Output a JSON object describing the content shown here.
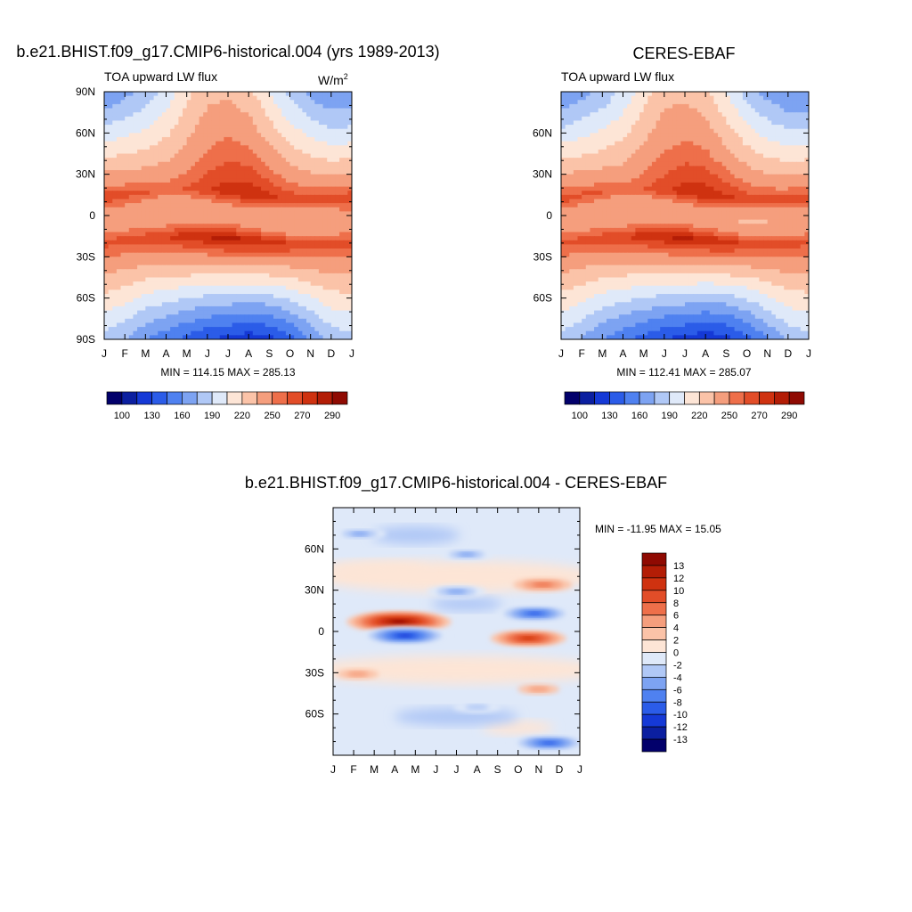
{
  "chart_data": [
    {
      "type": "heatmap",
      "title": "b.e21.BHIST.f09_g17.CMIP6-historical.004 (yrs 1989-2013)",
      "subtitle": "TOA upward LW flux",
      "units_base": "W/m",
      "units_exp": "2",
      "x_ticks": [
        "J",
        "F",
        "M",
        "A",
        "M",
        "J",
        "J",
        "A",
        "S",
        "O",
        "N",
        "D",
        "J"
      ],
      "y_ticks": [
        "90N",
        "60N",
        "30N",
        "0",
        "30S",
        "60S",
        "90S"
      ],
      "ylim": [
        -90,
        90
      ],
      "minmax": "MIN = 114.15 MAX = 285.13",
      "colorbar_labels": [
        "100",
        "130",
        "160",
        "190",
        "220",
        "250",
        "270",
        "290"
      ],
      "features": {
        "north_pole": [
          160,
          170,
          180,
          195,
          215,
          230,
          232,
          225,
          205,
          185,
          170,
          160,
          160
        ],
        "warm_north_lat": 15,
        "warm_north": [
          270,
          265,
          262,
          258,
          262,
          270,
          278,
          280,
          276,
          270,
          268,
          268,
          270
        ],
        "warm_south_lat": -18,
        "warm_south": [
          265,
          265,
          268,
          272,
          278,
          282,
          285,
          282,
          278,
          272,
          268,
          265,
          265
        ],
        "south_pole": [
          185,
          175,
          160,
          150,
          140,
          130,
          125,
          120,
          125,
          140,
          160,
          180,
          185
        ]
      }
    },
    {
      "type": "heatmap",
      "title": "CERES-EBAF",
      "subtitle": "TOA upward LW flux",
      "x_ticks": [
        "J",
        "F",
        "M",
        "A",
        "M",
        "J",
        "J",
        "A",
        "S",
        "O",
        "N",
        "D",
        "J"
      ],
      "y_ticks": [
        "60N",
        "30N",
        "0",
        "30S",
        "60S"
      ],
      "ylim": [
        -90,
        90
      ],
      "minmax": "MIN = 112.41 MAX = 285.07",
      "colorbar_labels": [
        "100",
        "130",
        "160",
        "190",
        "220",
        "250",
        "270",
        "290"
      ]
    },
    {
      "type": "heatmap",
      "title": "b.e21.BHIST.f09_g17.CMIP6-historical.004 - CERES-EBAF",
      "x_ticks": [
        "J",
        "F",
        "M",
        "A",
        "M",
        "J",
        "J",
        "A",
        "S",
        "O",
        "N",
        "D",
        "J"
      ],
      "y_ticks": [
        "60N",
        "30N",
        "0",
        "30S",
        "60S"
      ],
      "ylim": [
        -90,
        90
      ],
      "minmax": "MIN = -11.95 MAX =  15.05",
      "colorbar_labels": [
        "13",
        "12",
        "10",
        "8",
        "6",
        "4",
        "2",
        "0",
        "-2",
        "-4",
        "-6",
        "-8",
        "-10",
        "-12",
        "-13"
      ],
      "anomalies": [
        {
          "month": 3.2,
          "lat": 7,
          "value": 14
        },
        {
          "month": 3.5,
          "lat": -3,
          "value": -11
        },
        {
          "month": 9.5,
          "lat": -5,
          "value": 9
        },
        {
          "month": 9.8,
          "lat": 13,
          "value": -9
        },
        {
          "month": 6.0,
          "lat": 29,
          "value": -6
        },
        {
          "month": 10.2,
          "lat": 34,
          "value": 6
        },
        {
          "month": 1.3,
          "lat": 71,
          "value": -5
        },
        {
          "month": 6.5,
          "lat": 56,
          "value": -5
        },
        {
          "month": 10.5,
          "lat": -81,
          "value": -9
        },
        {
          "month": 7.0,
          "lat": -55,
          "value": -4
        },
        {
          "month": 1.2,
          "lat": -31,
          "value": 3
        },
        {
          "month": 10.0,
          "lat": -42,
          "value": 3
        }
      ]
    }
  ],
  "colors": {
    "abs_scale": [
      "#02006b",
      "#0b1fa0",
      "#1539d6",
      "#2b5ce8",
      "#4f81f0",
      "#7da3f2",
      "#b0c8f6",
      "#dfe9f9",
      "#fde5d6",
      "#fbc3a8",
      "#f59e7d",
      "#ee6f4a",
      "#e24d28",
      "#cf3210",
      "#b31d06",
      "#8f0a02"
    ],
    "diff_scale": [
      "#8f0a02",
      "#b31d06",
      "#cf3210",
      "#e24d28",
      "#ee6f4a",
      "#f59e7d",
      "#fbc3a8",
      "#fde5d6",
      "#dfe9f9",
      "#b0c8f6",
      "#7da3f2",
      "#4f81f0",
      "#2b5ce8",
      "#1539d6",
      "#0b1fa0",
      "#02006b"
    ]
  }
}
